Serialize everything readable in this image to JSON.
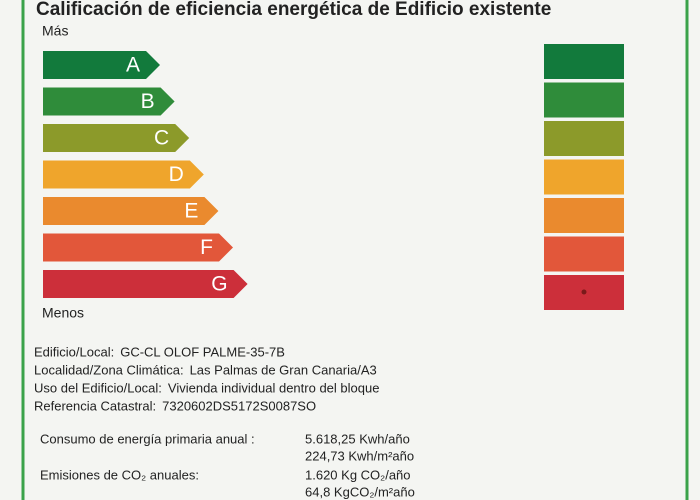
{
  "title": "Calificación de eficiencia energética de Edificio existente",
  "scale_top": "Más",
  "scale_bottom": "Menos",
  "classes": [
    {
      "letter": "A",
      "color": "#127a3c"
    },
    {
      "letter": "B",
      "color": "#2f8c3a"
    },
    {
      "letter": "C",
      "color": "#8c9a2a"
    },
    {
      "letter": "D",
      "color": "#efa52c"
    },
    {
      "letter": "E",
      "color": "#ea8a2e"
    },
    {
      "letter": "F",
      "color": "#e2573a"
    },
    {
      "letter": "G",
      "color": "#cc2f3a"
    }
  ],
  "info": [
    {
      "label": "Edificio/Local:",
      "value": "GC-CL OLOF PALME-35-7B"
    },
    {
      "label": "Localidad/Zona Climática:",
      "value": "Las Palmas de Gran Canaria/A3"
    },
    {
      "label": "Uso del Edificio/Local:",
      "value": "Vivienda individual dentro del bloque"
    },
    {
      "label": "Referencia Catastral:",
      "value": "7320602DS5172S0087SO"
    }
  ],
  "consumption": {
    "label": "Consumo de energía primaria anual :",
    "values": [
      "5.618,25 Kwh/año",
      "224,73 Kwh/m²año"
    ]
  },
  "emissions": {
    "label": "Emisiones de CO₂ anuales:",
    "values": [
      "1.620 Kg CO₂/año",
      "64,8 KgCO₂/m²año"
    ]
  }
}
